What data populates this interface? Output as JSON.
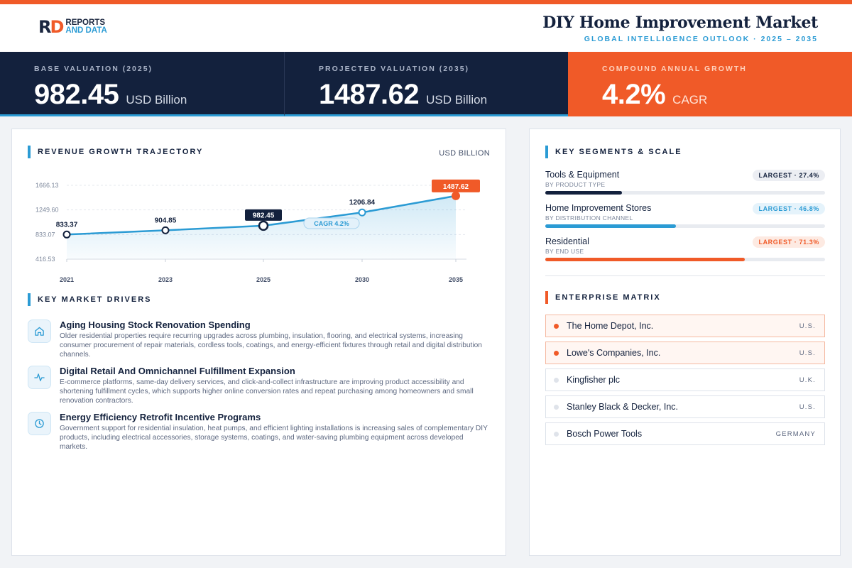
{
  "brand": {
    "mark_r": "R",
    "mark_d": "D",
    "line1": "REPORTS",
    "line2": "AND DATA"
  },
  "header": {
    "title": "DIY Home Improvement Market",
    "subtitle": "GLOBAL INTELLIGENCE OUTLOOK · 2025 – 2035"
  },
  "stats": [
    {
      "label": "BASE VALUATION (2025)",
      "value": "982.45",
      "unit": "USD Billion"
    },
    {
      "label": "PROJECTED VALUATION (2035)",
      "value": "1487.62",
      "unit": "USD Billion"
    },
    {
      "label": "COMPOUND ANNUAL GROWTH",
      "value": "4.2%",
      "unit": "CAGR"
    }
  ],
  "colors": {
    "navy": "#13213d",
    "accent_blue": "#2b9bd4",
    "accent_orange": "#f05a28"
  },
  "revenue": {
    "title": "REVENUE GROWTH TRAJECTORY",
    "unit": "USD BILLION",
    "cagr_label": "CAGR 4.2%"
  },
  "chart_data": {
    "type": "line",
    "x": [
      "2021",
      "2023",
      "2025",
      "2030",
      "2035"
    ],
    "values": [
      833.37,
      904.85,
      982.45,
      1206.84,
      1487.62
    ],
    "labels": [
      "833.37",
      "904.85",
      "982.45",
      "1206.84",
      "1487.62"
    ],
    "yticks": [
      "1666.13",
      "1249.60",
      "833.07",
      "416.53"
    ],
    "ylim": [
      416.53,
      1666.13
    ],
    "highlight_current": "2025",
    "highlight_projected": "2035",
    "grid": true,
    "area_fill": true
  },
  "drivers": {
    "title": "KEY MARKET DRIVERS",
    "items": [
      {
        "icon": "home-icon",
        "title": "Aging Housing Stock Renovation Spending",
        "desc": "Older residential properties require recurring upgrades across plumbing, insulation, flooring, and electrical systems, increasing consumer procurement of repair materials, cordless tools, coatings, and energy-efficient fixtures through retail and digital distribution channels."
      },
      {
        "icon": "activity-icon",
        "title": "Digital Retail And Omnichannel Fulfillment Expansion",
        "desc": "E-commerce platforms, same-day delivery services, and click-and-collect infrastructure are improving product accessibility and shortening fulfillment cycles, which supports higher online conversion rates and repeat purchasing among homeowners and small renovation contractors."
      },
      {
        "icon": "clock-icon",
        "title": "Energy Efficiency Retrofit Incentive Programs",
        "desc": "Government support for residential insulation, heat pumps, and efficient lighting installations is increasing sales of complementary DIY products, including electrical accessories, storage systems, coatings, and water-saving plumbing equipment across developed markets."
      }
    ]
  },
  "segments": {
    "title": "KEY SEGMENTS & SCALE",
    "items": [
      {
        "name": "Tools & Equipment",
        "by": "BY PRODUCT TYPE",
        "badge": "LARGEST · 27.4%",
        "share": 0.274,
        "color": "#13213d",
        "badge_bg": "#eceef3",
        "badge_fg": "#13213d"
      },
      {
        "name": "Home Improvement Stores",
        "by": "BY DISTRIBUTION CHANNEL",
        "badge": "LARGEST · 46.8%",
        "share": 0.468,
        "color": "#2b9bd4",
        "badge_bg": "#e5f3fb",
        "badge_fg": "#2b9bd4"
      },
      {
        "name": "Residential",
        "by": "BY END USE",
        "badge": "LARGEST · 71.3%",
        "share": 0.713,
        "color": "#f05a28",
        "badge_bg": "#fdeae2",
        "badge_fg": "#f05a28"
      }
    ]
  },
  "enterprise": {
    "title": "ENTERPRISE MATRIX",
    "items": [
      {
        "name": "The Home Depot, Inc.",
        "country": "U.S.",
        "highlight": true
      },
      {
        "name": "Lowe's Companies, Inc.",
        "country": "U.S.",
        "highlight": true
      },
      {
        "name": "Kingfisher plc",
        "country": "U.K.",
        "highlight": false
      },
      {
        "name": "Stanley Black & Decker, Inc.",
        "country": "U.S.",
        "highlight": false
      },
      {
        "name": "Bosch Power Tools",
        "country": "GERMANY",
        "highlight": false
      }
    ]
  }
}
